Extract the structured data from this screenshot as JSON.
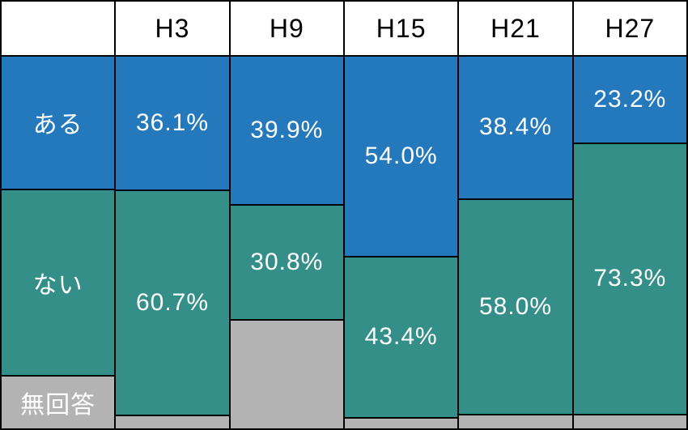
{
  "chart_data": {
    "type": "bar",
    "stacked": true,
    "orientation": "vertical",
    "unit": "%",
    "title": "",
    "xlabel": "",
    "ylabel": "",
    "gridlines": false,
    "legend_position": "left-column",
    "categories": [
      "H3",
      "H9",
      "H15",
      "H21",
      "H27"
    ],
    "series": [
      {
        "key": "aru",
        "name": "ある",
        "color": "#2478BC",
        "values": [
          36.1,
          39.9,
          54.0,
          38.4,
          23.2
        ],
        "labels": [
          "36.1%",
          "39.9%",
          "54.0%",
          "38.4%",
          "23.2%"
        ]
      },
      {
        "key": "nai",
        "name": "ない",
        "color": "#348F89",
        "values": [
          60.7,
          30.8,
          43.4,
          58.0,
          73.3
        ],
        "labels": [
          "60.7%",
          "30.8%",
          "43.4%",
          "58.0%",
          "73.3%"
        ]
      },
      {
        "key": "mukaitou",
        "name": "無回答",
        "color": "#B3B3B3",
        "values": [
          3.2,
          29.3,
          2.6,
          3.6,
          3.5
        ],
        "labels": [
          "",
          "",
          "",
          "",
          ""
        ]
      }
    ],
    "legend_column": {
      "header": "",
      "row_weights": [
        35.8,
        50.2,
        14.0
      ]
    },
    "colors": {
      "border": "#000000",
      "header_bg": "#FFFFFF",
      "header_text": "#000000",
      "segment_text": "#FFFFFF"
    }
  }
}
